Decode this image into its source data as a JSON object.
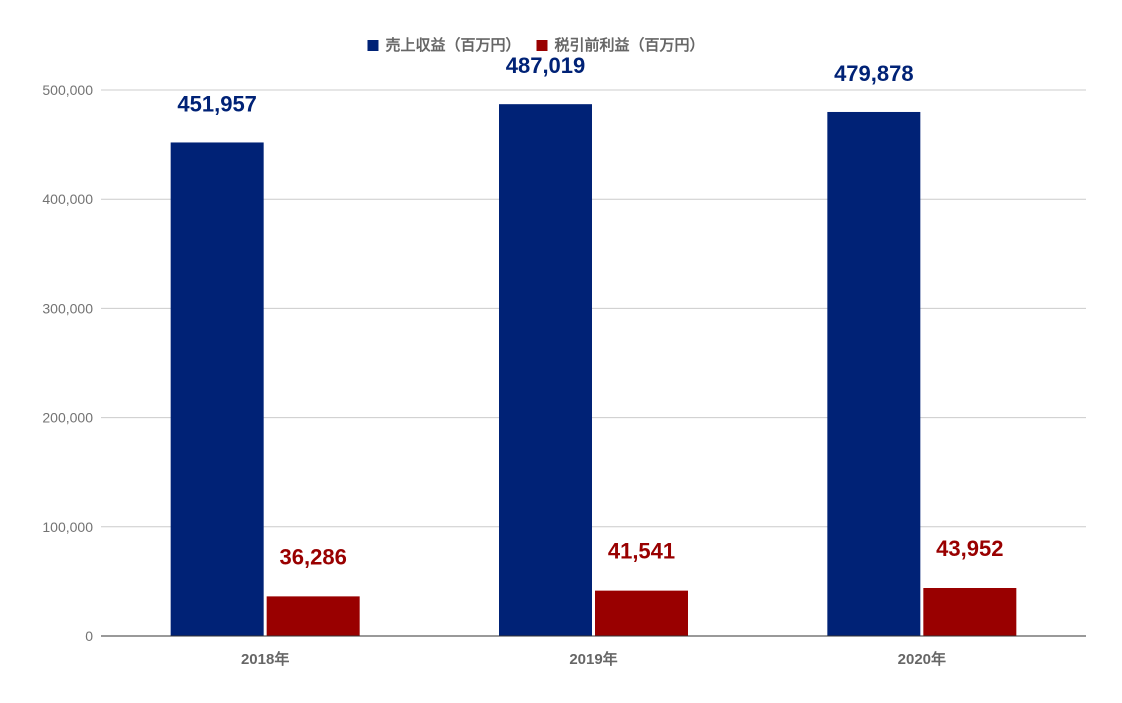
{
  "chart_data": {
    "type": "bar",
    "categories": [
      "2018年",
      "2019年",
      "2020年"
    ],
    "series": [
      {
        "name": "売上収益（百万円）",
        "values": [
          451957,
          487019,
          479878
        ],
        "color": "#002276",
        "labels": [
          "451,957",
          "487,019",
          "479,878"
        ]
      },
      {
        "name": "税引前利益（百万円）",
        "values": [
          36286,
          41541,
          43952
        ],
        "color": "#990000",
        "labels": [
          "36,286",
          "41,541",
          "43,952"
        ]
      }
    ],
    "title": "",
    "xlabel": "",
    "ylabel": "",
    "ylim": [
      0,
      500000
    ],
    "yticks": [
      0,
      100000,
      200000,
      300000,
      400000,
      500000
    ],
    "ytick_labels": [
      "0",
      "100,000",
      "200,000",
      "300,000",
      "400,000",
      "500,000"
    ],
    "grid": true,
    "legend_position": "top-center"
  }
}
